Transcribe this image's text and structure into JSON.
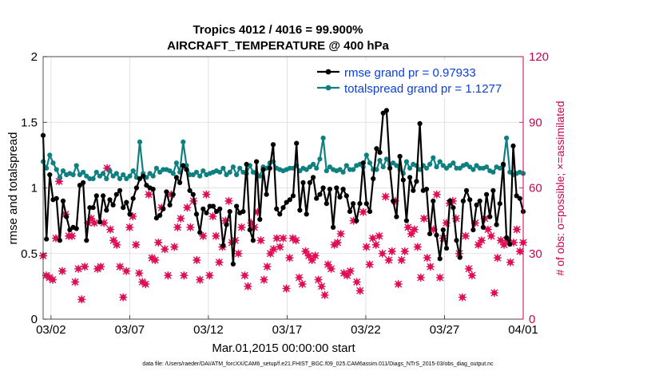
{
  "chart_data": {
    "type": "line",
    "title": "Tropics 4012 / 4016 = 99.900%",
    "subtitle": "AIRCRAFT_TEMPERATURE @ 400 hPa",
    "xlabel": "Mar.01,2015 00:00:00 start",
    "ylabel": "rmse and totalspread",
    "ylabel_right": "# of obs: o=possible; ×=assimilated",
    "xlim": [
      0.5,
      31.0
    ],
    "ylim": [
      0,
      2
    ],
    "ylim_right": [
      0,
      120
    ],
    "x_ticks": [
      1,
      6,
      11,
      16,
      21,
      26,
      31
    ],
    "x_tick_labels": [
      "03/02",
      "03/07",
      "03/12",
      "03/17",
      "03/22",
      "03/27",
      "04/01"
    ],
    "y_ticks": [
      0,
      0.5,
      1,
      1.5,
      2
    ],
    "y_tick_labels": [
      "0",
      "0.5",
      "1",
      "1.5",
      "2"
    ],
    "y_right_ticks": [
      0,
      30,
      60,
      90,
      120
    ],
    "y_right_tick_labels": [
      "0",
      "30",
      "60",
      "90",
      "120"
    ],
    "grid": true,
    "legend_position": "top-right",
    "footer": "data file: /Users/raeder/DAI/ATM_forcXX/CAM6_setup/f.e21.FHIST_BGC.f09_025.CAM6assim.011/Diags_NTrS_2015-03/obs_diag_output.nc",
    "colors": {
      "rmse": "#000000",
      "spread": "#0f8080",
      "obs": "#dd1155",
      "right_axis": "#cc0055",
      "legend_text": "#0a3fd8"
    },
    "series": [
      {
        "name": "rmse grand pr = 0.97933",
        "color": "#000000",
        "values": [
          1.4,
          0.61,
          1.1,
          0.91,
          0.92,
          0.6,
          0.9,
          0.78,
          0.68,
          0.7,
          0.69,
          1.02,
          1.04,
          0.6,
          0.85,
          0.85,
          0.94,
          0.74,
          0.94,
          0.83,
          0.91,
          0.87,
          0.95,
          0.98,
          0.85,
          0.89,
          0.8,
          0.92,
          1.0,
          1.07,
          1.09,
          1.02,
          1.0,
          0.99,
          0.77,
          0.79,
          0.84,
          0.97,
          0.87,
          0.95,
          1.08,
          1.04,
          1.17,
          1.14,
          0.98,
          0.95,
          0.8,
          0.66,
          0.84,
          0.81,
          0.86,
          0.86,
          0.82,
          0.84,
          0.56,
          0.72,
          0.82,
          0.42,
          0.86,
          0.81,
          0.82,
          1.18,
          0.68,
          0.6,
          1.2,
          0.76,
          1.14,
          0.95,
          1.15,
          1.33,
          0.84,
          0.8,
          0.85,
          0.89,
          0.91,
          0.94,
          1.34,
          0.83,
          1.04,
          0.8,
          1.04,
          1.08,
          0.92,
          0.95,
          1.0,
          0.88,
          0.99,
          0.7,
          1.0,
          0.93,
          0.99,
          0.94,
          0.82,
          0.88,
          0.75,
          0.88,
          1.19,
          0.88,
          0.82,
          1.07,
          1.3,
          1.27,
          1.57,
          1.59,
          1.15,
          0.9,
          0.78,
          1.24,
          1.06,
          0.75,
          1.08,
          0.98,
          1.05,
          1.49,
          0.98,
          0.99,
          0.65,
          0.9,
          0.64,
          0.46,
          0.68,
          0.54,
          0.9,
          0.85,
          0.6,
          0.47,
          0.9,
          0.98,
          0.91,
          0.68,
          0.87,
          0.9,
          0.7,
          0.95,
          0.78,
          0.98,
          0.72,
          0.88,
          1.18,
          0.62,
          0.57,
          1.32,
          0.94,
          0.92,
          0.82
        ]
      },
      {
        "name": "totalspread grand pr = 1.1277",
        "color": "#0f8080",
        "values": [
          1.2,
          1.15,
          1.25,
          1.19,
          1.14,
          1.08,
          1.13,
          1.1,
          1.11,
          1.1,
          1.17,
          1.1,
          1.12,
          1.09,
          1.07,
          1.07,
          1.12,
          1.09,
          1.11,
          1.07,
          1.13,
          1.09,
          1.11,
          1.07,
          1.1,
          1.07,
          1.09,
          1.13,
          1.08,
          1.35,
          1.11,
          1.08,
          1.11,
          1.09,
          1.15,
          1.12,
          1.14,
          1.14,
          1.13,
          1.11,
          1.19,
          1.12,
          1.35,
          1.17,
          1.1,
          1.1,
          1.12,
          1.09,
          1.13,
          1.1,
          1.11,
          1.12,
          1.13,
          1.12,
          1.15,
          1.1,
          1.12,
          1.16,
          1.1,
          1.15,
          1.12,
          1.11,
          1.17,
          1.12,
          1.11,
          1.09,
          1.16,
          1.15,
          1.19,
          1.2,
          1.15,
          1.14,
          1.13,
          1.14,
          1.15,
          1.15,
          1.17,
          1.13,
          1.15,
          1.14,
          1.16,
          1.18,
          1.15,
          1.22,
          1.38,
          1.13,
          1.16,
          1.14,
          1.13,
          1.14,
          1.12,
          1.17,
          1.14,
          1.14,
          1.17,
          1.18,
          1.16,
          1.25,
          1.19,
          1.14,
          1.14,
          1.21,
          1.16,
          1.22,
          1.18,
          1.19,
          1.17,
          1.14,
          1.11,
          1.2,
          1.15,
          1.18,
          1.17,
          1.14,
          1.17,
          1.15,
          1.18,
          1.23,
          1.16,
          1.2,
          1.17,
          1.15,
          1.17,
          1.19,
          1.15,
          1.15,
          1.17,
          1.18,
          1.16,
          1.14,
          1.17,
          1.15,
          1.15,
          1.16,
          1.13,
          1.12,
          1.16,
          1.15,
          1.17,
          1.38,
          1.12,
          1.1,
          1.11,
          1.12,
          1.11
        ]
      },
      {
        "name": "obs count (assimilated)",
        "axis": "right",
        "color": "#dd1155",
        "values": [
          29,
          20,
          19,
          18,
          37,
          63,
          22,
          48,
          38,
          38,
          17,
          23,
          9,
          24,
          44,
          46,
          44,
          23,
          24,
          44,
          69,
          41,
          36,
          34,
          24,
          10,
          22,
          42,
          47,
          34,
          21,
          17,
          16,
          57,
          28,
          27,
          35,
          51,
          32,
          20,
          57,
          33,
          42,
          46,
          20,
          51,
          42,
          54,
          27,
          18,
          38,
          57,
          20,
          47,
          38,
          26,
          33,
          45,
          54,
          35,
          36,
          30,
          42,
          20,
          15,
          44,
          42,
          49,
          36,
          18,
          24,
          30,
          32,
          37,
          33,
          37,
          14,
          28,
          37,
          36,
          19,
          16,
          31,
          29,
          27,
          29,
          18,
          15,
          11,
          25,
          23,
          34,
          35,
          39,
          21,
          20,
          22,
          45,
          17,
          13,
          49,
          33,
          25,
          37,
          34,
          38,
          30,
          56,
          27,
          31,
          54,
          16,
          27,
          31,
          42,
          39,
          41,
          33,
          19,
          46,
          28,
          24,
          41,
          57,
          19,
          37,
          44,
          53,
          54,
          46,
          30,
          10,
          38,
          23,
          20,
          44,
          34,
          36,
          46,
          41,
          38,
          12,
          28,
          36,
          34,
          36,
          26,
          35,
          41,
          31,
          35
        ]
      }
    ],
    "legend": [
      {
        "label": "rmse grand pr = 0.97933",
        "series": 0
      },
      {
        "label": "totalspread grand pr = 1.1277",
        "series": 1
      }
    ]
  }
}
